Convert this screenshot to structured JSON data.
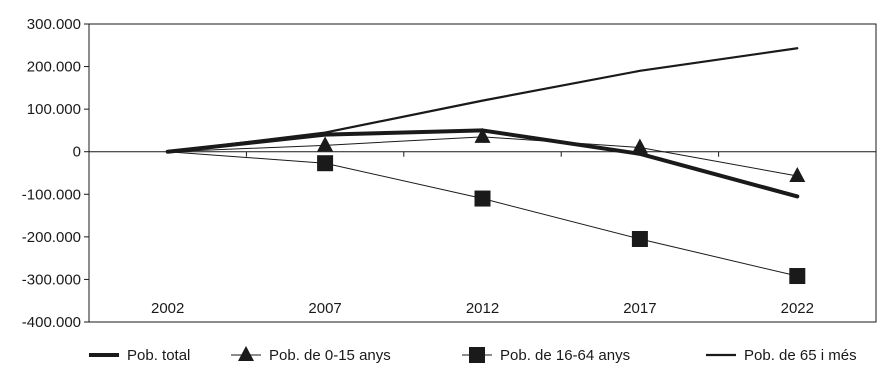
{
  "chart_data": {
    "type": "line",
    "categories": [
      "2002",
      "2007",
      "2012",
      "2017",
      "2022"
    ],
    "y_ticks": [
      "300.000",
      "200.000",
      "100.000",
      "0",
      "-100.000",
      "-200.000",
      "-300.000",
      "-400.000"
    ],
    "ylim": [
      -400000,
      300000
    ],
    "grid": false,
    "legend_position": "bottom",
    "series": [
      {
        "name": "Pob. total",
        "values": [
          0,
          40000,
          50000,
          -5000,
          -105000
        ],
        "marker": "none",
        "line_weight": "thick",
        "color": "#1a1a1a"
      },
      {
        "name": "Pob. de 0-15 anys",
        "values": [
          0,
          15000,
          35000,
          10000,
          -57000
        ],
        "marker": "triangle",
        "line_weight": "thin",
        "color": "#1a1a1a"
      },
      {
        "name": "Pob. de 16-64 anys",
        "values": [
          0,
          -27000,
          -110000,
          -205000,
          -292000
        ],
        "marker": "square",
        "line_weight": "thin",
        "color": "#1a1a1a"
      },
      {
        "name": "Pob. de 65 i més",
        "values": [
          0,
          45000,
          120000,
          190000,
          243000
        ],
        "marker": "none",
        "line_weight": "medium",
        "color": "#1a1a1a"
      }
    ]
  }
}
